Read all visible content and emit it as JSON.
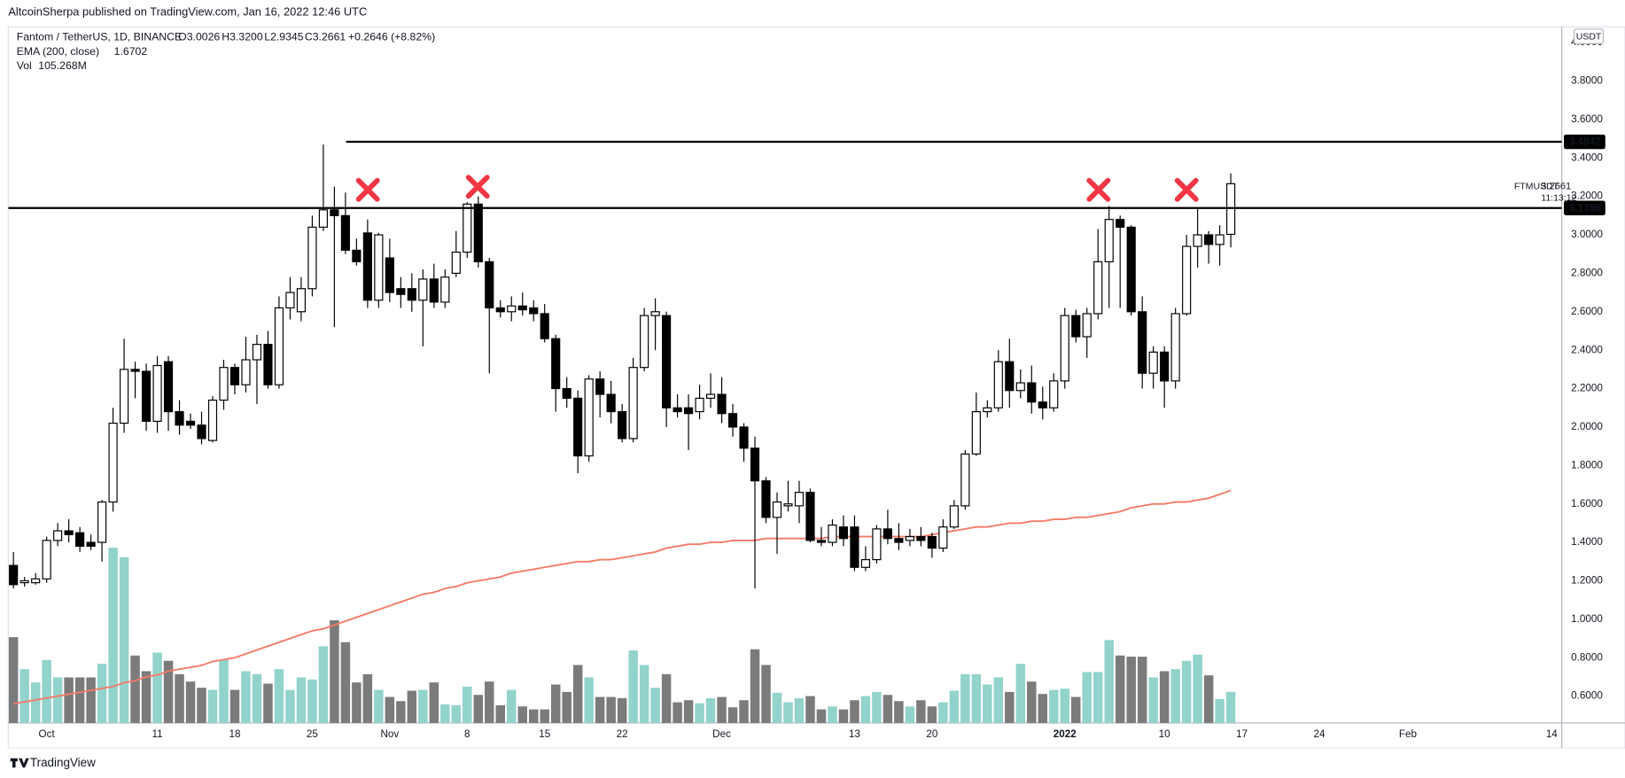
{
  "header": {
    "published": "AltcoinSherpa published on TradingView.com, Jan 16, 2022 12:46 UTC",
    "footer": "TradingView"
  },
  "chart_data": {
    "type": "candlestick",
    "legend": {
      "symbol": "Fantom / TetherUS, 1D, BINANCE",
      "open": "O3.0026",
      "high": "H3.3200",
      "low": "L2.9345",
      "close": "C3.2661",
      "change": "+0.2646 (+8.82%)",
      "ema": "EMA (200, close)",
      "vol": "Vol",
      "vol_value": "105.268M"
    },
    "symbol_label": "FTMUSDT",
    "countdown": "11:13:12",
    "currency": "USDT",
    "up_color": "#ffffff",
    "down_color": "#000000",
    "x": [
      "2021-09-28",
      "2021-09-29",
      "2021-09-30",
      "2021-10-01",
      "2021-10-02",
      "2021-10-03",
      "2021-10-04",
      "2021-10-05",
      "2021-10-06",
      "2021-10-07",
      "2021-10-08",
      "2021-10-09",
      "2021-10-10",
      "2021-10-11",
      "2021-10-12",
      "2021-10-13",
      "2021-10-14",
      "2021-10-15",
      "2021-10-16",
      "2021-10-17",
      "2021-10-18",
      "2021-10-19",
      "2021-10-20",
      "2021-10-21",
      "2021-10-22",
      "2021-10-23",
      "2021-10-24",
      "2021-10-25",
      "2021-10-26",
      "2021-10-27",
      "2021-10-28",
      "2021-10-29",
      "2021-10-30",
      "2021-10-31",
      "2021-11-01",
      "2021-11-02",
      "2021-11-03",
      "2021-11-04",
      "2021-11-05",
      "2021-11-06",
      "2021-11-07",
      "2021-11-08",
      "2021-11-09",
      "2021-11-10",
      "2021-11-11",
      "2021-11-12",
      "2021-11-13",
      "2021-11-14",
      "2021-11-15",
      "2021-11-16",
      "2021-11-17",
      "2021-11-18",
      "2021-11-19",
      "2021-11-20",
      "2021-11-21",
      "2021-11-22",
      "2021-11-23",
      "2021-11-24",
      "2021-11-25",
      "2021-11-26",
      "2021-11-27",
      "2021-11-28",
      "2021-11-29",
      "2021-11-30",
      "2021-12-01",
      "2021-12-02",
      "2021-12-03",
      "2021-12-04",
      "2021-12-05",
      "2021-12-06",
      "2021-12-07",
      "2021-12-08",
      "2021-12-09",
      "2021-12-10",
      "2021-12-11",
      "2021-12-12",
      "2021-12-13",
      "2021-12-14",
      "2021-12-15",
      "2021-12-16",
      "2021-12-17",
      "2021-12-18",
      "2021-12-19",
      "2021-12-20",
      "2021-12-21",
      "2021-12-22",
      "2021-12-23",
      "2021-12-24",
      "2021-12-25",
      "2021-12-26",
      "2021-12-27",
      "2021-12-28",
      "2021-12-29",
      "2021-12-30",
      "2021-12-31",
      "2022-01-01",
      "2022-01-02",
      "2022-01-03",
      "2022-01-04",
      "2022-01-05",
      "2022-01-06",
      "2022-01-07",
      "2022-01-08",
      "2022-01-09",
      "2022-01-10",
      "2022-01-11",
      "2022-01-12",
      "2022-01-13",
      "2022-01-14",
      "2022-01-15",
      "2022-01-16"
    ],
    "open": [
      1.28,
      1.19,
      1.19,
      1.21,
      1.41,
      1.46,
      1.45,
      1.4,
      1.4,
      1.61,
      2.02,
      2.3,
      2.29,
      2.03,
      2.34,
      2.08,
      2.03,
      2.01,
      1.93,
      2.14,
      2.31,
      2.22,
      2.35,
      2.43,
      2.22,
      2.62,
      2.6,
      2.72,
      3.04,
      3.13,
      3.1,
      2.92,
      3.01,
      2.66,
      2.88,
      2.72,
      2.72,
      2.66,
      2.77,
      2.65,
      2.8,
      2.91,
      3.16,
      2.86,
      2.62,
      2.6,
      2.63,
      2.62,
      2.59,
      2.46,
      2.2,
      2.15,
      1.85,
      2.25,
      2.17,
      2.08,
      1.94,
      2.31,
      2.58,
      2.58,
      2.1,
      2.1,
      2.08,
      2.15,
      2.17,
      2.07,
      2.0,
      1.89,
      1.72,
      1.53,
      1.59,
      1.59,
      1.66,
      1.41,
      1.4,
      1.48,
      1.48,
      1.27,
      1.31,
      1.47,
      1.42,
      1.41,
      1.43,
      1.43,
      1.37,
      1.48,
      1.59,
      1.86,
      2.08,
      2.1,
      2.34,
      2.19,
      2.23,
      2.13,
      2.1,
      2.24,
      2.58,
      2.47,
      2.59,
      2.86,
      3.08,
      3.04,
      2.6,
      2.28,
      2.39,
      2.24,
      2.59,
      2.94,
      3.0,
      2.95,
      3.0026
    ],
    "high": [
      1.35,
      1.22,
      1.24,
      1.43,
      1.5,
      1.52,
      1.48,
      1.44,
      1.62,
      2.1,
      2.46,
      2.34,
      2.33,
      2.37,
      2.37,
      2.14,
      2.07,
      2.08,
      2.16,
      2.35,
      2.33,
      2.47,
      2.48,
      2.5,
      2.68,
      2.78,
      2.78,
      3.1,
      3.47,
      3.25,
      3.22,
      2.98,
      3.08,
      3.01,
      2.98,
      2.78,
      2.8,
      2.82,
      2.85,
      2.82,
      3.02,
      3.17,
      3.2,
      2.88,
      2.66,
      2.68,
      2.7,
      2.66,
      2.64,
      2.48,
      2.26,
      2.19,
      2.27,
      2.29,
      2.24,
      2.12,
      2.36,
      2.62,
      2.67,
      2.6,
      2.17,
      2.17,
      2.22,
      2.28,
      2.26,
      2.12,
      2.02,
      1.95,
      1.74,
      1.66,
      1.72,
      1.72,
      1.68,
      1.48,
      1.52,
      1.54,
      1.54,
      1.38,
      1.49,
      1.57,
      1.5,
      1.47,
      1.48,
      1.45,
      1.52,
      1.62,
      1.88,
      2.18,
      2.14,
      2.4,
      2.46,
      2.3,
      2.32,
      2.21,
      2.28,
      2.62,
      2.61,
      2.62,
      3.03,
      3.15,
      3.1,
      3.05,
      2.68,
      2.42,
      2.42,
      2.62,
      3.0,
      3.14,
      3.02,
      3.05,
      3.32
    ],
    "low": [
      1.16,
      1.17,
      1.18,
      1.19,
      1.38,
      1.4,
      1.35,
      1.36,
      1.3,
      1.56,
      1.97,
      2.15,
      1.98,
      1.97,
      1.98,
      1.96,
      1.99,
      1.91,
      1.92,
      2.09,
      2.17,
      2.18,
      2.12,
      2.2,
      2.2,
      2.56,
      2.55,
      2.68,
      3.02,
      2.52,
      2.9,
      2.84,
      2.62,
      2.62,
      2.65,
      2.62,
      2.6,
      2.42,
      2.62,
      2.62,
      2.78,
      2.88,
      2.83,
      2.28,
      2.57,
      2.55,
      2.58,
      2.55,
      2.44,
      2.08,
      2.1,
      1.76,
      1.82,
      2.05,
      2.02,
      1.92,
      1.92,
      2.29,
      2.4,
      2.0,
      2.05,
      1.88,
      2.04,
      2.1,
      2.02,
      1.95,
      1.82,
      1.16,
      1.5,
      1.34,
      1.56,
      1.5,
      1.4,
      1.38,
      1.38,
      1.38,
      1.25,
      1.25,
      1.29,
      1.39,
      1.36,
      1.38,
      1.38,
      1.32,
      1.35,
      1.47,
      1.57,
      1.85,
      2.05,
      2.08,
      2.1,
      2.15,
      2.07,
      2.04,
      2.08,
      2.2,
      2.44,
      2.36,
      2.56,
      2.62,
      2.62,
      2.58,
      2.2,
      2.2,
      2.1,
      2.2,
      2.58,
      2.83,
      2.85,
      2.84,
      2.9345
    ],
    "close": [
      1.18,
      1.2,
      1.21,
      1.41,
      1.46,
      1.44,
      1.38,
      1.38,
      1.61,
      2.02,
      2.3,
      2.29,
      2.03,
      2.32,
      2.08,
      2.01,
      2.01,
      1.94,
      2.14,
      2.31,
      2.22,
      2.35,
      2.43,
      2.22,
      2.62,
      2.7,
      2.72,
      3.04,
      3.13,
      3.1,
      2.92,
      2.86,
      2.66,
      3.0,
      2.7,
      2.69,
      2.66,
      2.77,
      2.65,
      2.78,
      2.91,
      3.16,
      2.86,
      2.62,
      2.6,
      2.63,
      2.61,
      2.59,
      2.46,
      2.2,
      2.15,
      1.85,
      2.25,
      2.17,
      2.08,
      1.94,
      2.31,
      2.58,
      2.6,
      2.1,
      2.08,
      2.07,
      2.15,
      2.17,
      2.07,
      2.0,
      1.89,
      1.72,
      1.53,
      1.61,
      1.6,
      1.66,
      1.41,
      1.4,
      1.49,
      1.42,
      1.27,
      1.31,
      1.47,
      1.42,
      1.4,
      1.43,
      1.41,
      1.37,
      1.48,
      1.59,
      1.86,
      2.08,
      2.1,
      2.34,
      2.19,
      2.23,
      2.13,
      2.1,
      2.24,
      2.58,
      2.47,
      2.59,
      2.86,
      3.08,
      3.04,
      2.6,
      2.28,
      2.39,
      2.24,
      2.59,
      2.94,
      3.0,
      2.95,
      3.0,
      3.2661
    ],
    "ema": {
      "name": "EMA (200, close)",
      "color": "#f57a68",
      "values": [
        0.56,
        0.57,
        0.58,
        0.59,
        0.6,
        0.61,
        0.62,
        0.63,
        0.64,
        0.65,
        0.67,
        0.68,
        0.7,
        0.71,
        0.73,
        0.74,
        0.75,
        0.76,
        0.78,
        0.79,
        0.8,
        0.82,
        0.84,
        0.86,
        0.88,
        0.9,
        0.92,
        0.94,
        0.95,
        0.97,
        0.99,
        1.01,
        1.03,
        1.05,
        1.07,
        1.09,
        1.11,
        1.13,
        1.14,
        1.16,
        1.17,
        1.19,
        1.2,
        1.21,
        1.22,
        1.24,
        1.25,
        1.26,
        1.27,
        1.28,
        1.29,
        1.3,
        1.3,
        1.31,
        1.31,
        1.32,
        1.33,
        1.34,
        1.35,
        1.37,
        1.38,
        1.39,
        1.39,
        1.4,
        1.4,
        1.41,
        1.41,
        1.41,
        1.42,
        1.42,
        1.42,
        1.42,
        1.42,
        1.42,
        1.43,
        1.43,
        1.43,
        1.43,
        1.43,
        1.43,
        1.43,
        1.43,
        1.43,
        1.44,
        1.45,
        1.46,
        1.47,
        1.48,
        1.48,
        1.49,
        1.5,
        1.5,
        1.51,
        1.51,
        1.52,
        1.52,
        1.53,
        1.53,
        1.54,
        1.55,
        1.56,
        1.58,
        1.59,
        1.6,
        1.6,
        1.61,
        1.61,
        1.62,
        1.63,
        1.65,
        1.6702
      ]
    },
    "volume": {
      "name": "Vol",
      "up_color": "#92d3cc",
      "down_color": "#7b7b7b",
      "values": [
        290,
        182,
        137,
        213,
        154,
        154,
        154,
        154,
        200,
        592,
        560,
        228,
        175,
        238,
        210,
        165,
        140,
        119,
        112,
        214,
        112,
        175,
        165,
        133,
        182,
        112,
        154,
        147,
        259,
        347,
        273,
        137,
        165,
        112,
        88,
        74,
        109,
        112,
        137,
        63,
        60,
        123,
        95,
        140,
        60,
        112,
        56,
        46,
        46,
        130,
        105,
        196,
        154,
        88,
        88,
        84,
        245,
        196,
        119,
        165,
        70,
        77,
        67,
        84,
        88,
        53,
        77,
        249,
        196,
        102,
        70,
        84,
        91,
        46,
        56,
        46,
        77,
        91,
        105,
        95,
        74,
        56,
        77,
        56,
        70,
        109,
        165,
        165,
        130,
        154,
        105,
        200,
        140,
        98,
        112,
        116,
        88,
        172,
        172,
        280,
        228,
        224,
        224,
        154,
        175,
        182,
        210,
        231,
        161,
        81,
        105.268
      ]
    },
    "levels": [
      3.4842,
      3.1396
    ],
    "level_color": "#000000",
    "xlim": [
      "2021-09-27",
      "2022-02-15"
    ],
    "ylim": [
      0.46,
      4.06
    ],
    "grid": false,
    "xticks": [
      {
        "value": "2021-10-01",
        "label": "Oct"
      },
      {
        "value": "2021-10-11",
        "label": "11"
      },
      {
        "value": "2021-10-18",
        "label": "18"
      },
      {
        "value": "2021-10-25",
        "label": "25"
      },
      {
        "value": "2021-11-01",
        "label": "Nov"
      },
      {
        "value": "2021-11-08",
        "label": "8"
      },
      {
        "value": "2021-11-15",
        "label": "15"
      },
      {
        "value": "2021-11-22",
        "label": "22"
      },
      {
        "value": "2021-12-01",
        "label": "Dec"
      },
      {
        "value": "2021-12-13",
        "label": "13"
      },
      {
        "value": "2021-12-20",
        "label": "20"
      },
      {
        "value": "2022-01-01",
        "label": "2022"
      },
      {
        "value": "2022-01-10",
        "label": "10"
      },
      {
        "value": "2022-01-17",
        "label": "17"
      },
      {
        "value": "2022-01-24",
        "label": "24"
      },
      {
        "value": "2022-02-01",
        "label": "Feb"
      },
      {
        "value": "2022-02-14",
        "label": "14"
      }
    ],
    "yticks": [
      {
        "value": 0.6,
        "label": "0.6000"
      },
      {
        "value": 0.8,
        "label": "0.8000"
      },
      {
        "value": 1.0,
        "label": "1.0000"
      },
      {
        "value": 1.2,
        "label": "1.2000"
      },
      {
        "value": 1.4,
        "label": "1.4000"
      },
      {
        "value": 1.6,
        "label": "1.6000"
      },
      {
        "value": 1.8,
        "label": "1.8000"
      },
      {
        "value": 2.0,
        "label": "2.0000"
      },
      {
        "value": 2.2,
        "label": "2.2000"
      },
      {
        "value": 2.4,
        "label": "2.4000"
      },
      {
        "value": 2.6,
        "label": "2.6000"
      },
      {
        "value": 2.8,
        "label": "2.8000"
      },
      {
        "value": 3.0,
        "label": "3.0000"
      },
      {
        "value": 3.2,
        "label": "3.2000"
      },
      {
        "value": 3.4,
        "label": "3.4000"
      },
      {
        "value": 3.6,
        "label": "3.6000"
      },
      {
        "value": 3.8,
        "label": "3.8000"
      },
      {
        "value": 4.0,
        "label": "4.0000"
      }
    ]
  }
}
